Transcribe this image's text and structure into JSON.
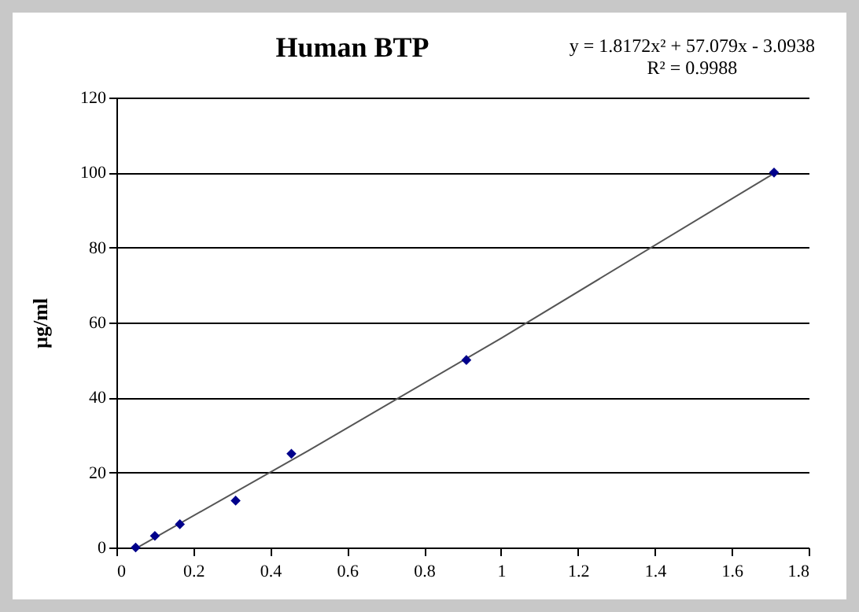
{
  "chart_data": {
    "type": "scatter",
    "title": "Human BTP",
    "ylabel": "µg/ml",
    "annotations": [
      "y = 1.8172x² + 57.079x - 3.0938",
      "R² = 0.9988"
    ],
    "series": [
      {
        "color": "#00008b",
        "x": [
          0.05,
          0.1,
          0.165,
          0.31,
          0.455,
          0.91,
          1.71
        ],
        "values": [
          0,
          3.1,
          6.2,
          12.5,
          25,
          50,
          100
        ]
      },
      {
        "type": "line",
        "marker": "none",
        "color": "#555555",
        "x": [
          0.06,
          0.5,
          1.0,
          1.71
        ],
        "values": [
          0.3,
          25.9,
          55.8,
          99.8
        ]
      }
    ],
    "xlim": [
      0,
      1.8
    ],
    "xticks": [
      0,
      0.2,
      0.4,
      0.6,
      0.8,
      1,
      1.2,
      1.4,
      1.6,
      1.8
    ],
    "ylim": [
      0,
      120
    ],
    "yticks": [
      0,
      20,
      40,
      60,
      80,
      100,
      120
    ],
    "grid": "y",
    "marker": "diamond"
  }
}
